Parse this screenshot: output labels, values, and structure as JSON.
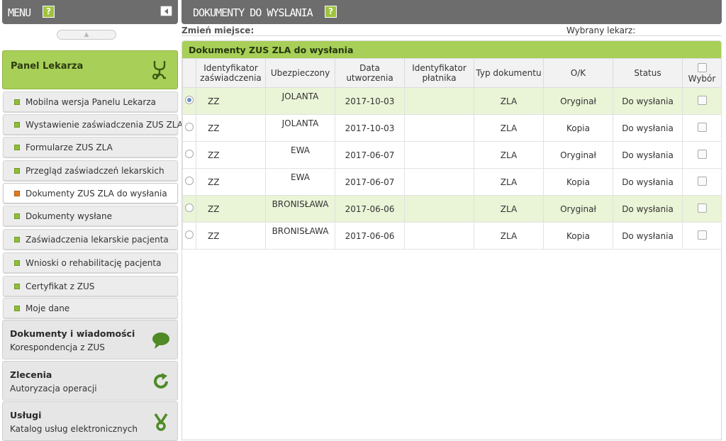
{
  "menu": {
    "title": "MENU",
    "help": "?",
    "panel_lekarza": "Panel Lekarza",
    "items": [
      "Mobilna wersja Panelu Lekarza",
      "Wystawienie zaświadczenia ZUS ZLA",
      "Formularze ZUS ZLA",
      "Przegląd zaświadczeń lekarskich",
      "Dokumenty ZUS ZLA do wysłania",
      "Dokumenty wysłane",
      "Zaświadczenia lekarskie pacjenta",
      "Wnioski o rehabilitację pacjenta",
      "Certyfikat z ZUS",
      "Moje dane"
    ],
    "active_item": "Dokumenty ZUS ZLA do wysłania",
    "sections": [
      {
        "title": "Dokumenty i wiadomości",
        "subtitle": "Korespondencja z ZUS",
        "icon": "speech-bubble-icon"
      },
      {
        "title": "Zlecenia",
        "subtitle": "Autoryzacja operacji",
        "icon": "refresh-icon"
      },
      {
        "title": "Usługi",
        "subtitle": "Katalog usług elektronicznych",
        "icon": "tools-icon"
      }
    ]
  },
  "main": {
    "title": "DOKUMENTY DO WYSLANIA",
    "help": "?",
    "change_place_label": "Zmień miejsce:",
    "selected_doctor_label": "Wybrany lekarz:",
    "table_title": "Dokumenty ZUS ZLA do wysłania",
    "columns": {
      "id": "Identyfikator zaświadczenia",
      "insured": "Ubezpieczony",
      "created": "Data utworzenia",
      "payer": "Identyfikator płatnika",
      "type": "Typ dokumentu",
      "ok": "O/K",
      "status": "Status",
      "select": "Wybór"
    },
    "rows": [
      {
        "id": "ZZ",
        "insured": "JOLANTA",
        "created": "2017-10-03",
        "payer": "",
        "type": "ZLA",
        "ok": "Oryginał",
        "status": "Do wysłania"
      },
      {
        "id": "ZZ",
        "insured": "JOLANTA",
        "created": "2017-10-03",
        "payer": "",
        "type": "ZLA",
        "ok": "Kopia",
        "status": "Do wysłania"
      },
      {
        "id": "ZZ",
        "insured": "EWA",
        "created": "2017-06-07",
        "payer": "",
        "type": "ZLA",
        "ok": "Oryginał",
        "status": "Do wysłania"
      },
      {
        "id": "ZZ",
        "insured": "EWA",
        "created": "2017-06-07",
        "payer": "",
        "type": "ZLA",
        "ok": "Kopia",
        "status": "Do wysłania"
      },
      {
        "id": "ZZ",
        "insured": "BRONISŁAWA",
        "created": "2017-06-06",
        "payer": "",
        "type": "ZLA",
        "ok": "Oryginał",
        "status": "Do wysłania"
      },
      {
        "id": "ZZ",
        "insured": "BRONISŁAWA",
        "created": "2017-06-06",
        "payer": "",
        "type": "ZLA",
        "ok": "Kopia",
        "status": "Do wysłania"
      }
    ],
    "selected_row": 0
  },
  "colors": {
    "header_gray": "#6d6d6d",
    "accent_green": "#a8cf58",
    "highlight_row": "#eaf4d7",
    "active_bullet": "#e07b1e"
  }
}
